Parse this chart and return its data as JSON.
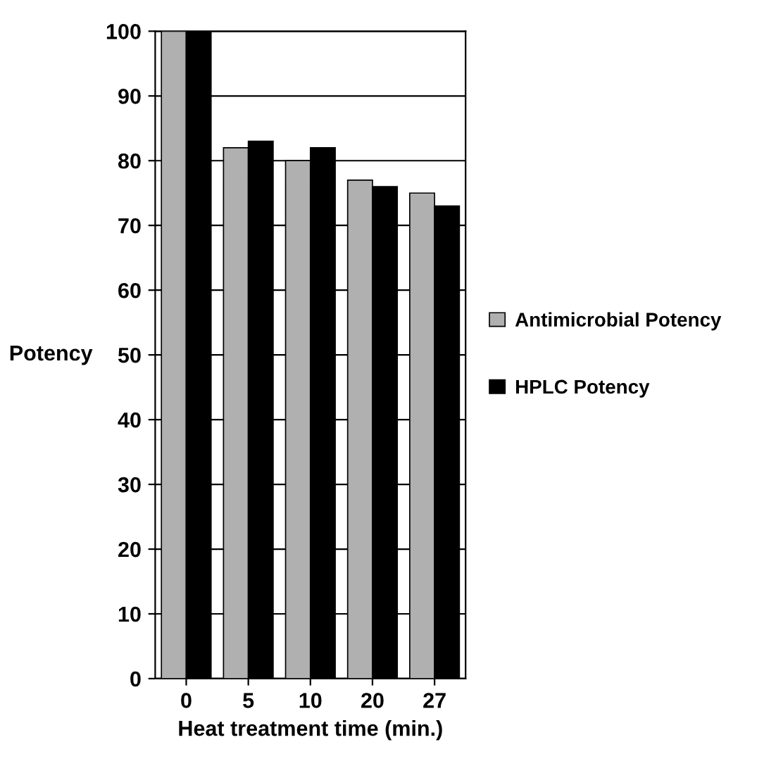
{
  "chart_data": {
    "type": "bar",
    "xlabel": "Heat treatment time (min.)",
    "ylabel": "Potency",
    "categories": [
      "0",
      "5",
      "10",
      "20",
      "27"
    ],
    "series": [
      {
        "name": "Antimicrobial Potency",
        "color": "#b0b0b0",
        "values": [
          100,
          82,
          80,
          77,
          75
        ]
      },
      {
        "name": "HPLC Potency",
        "color": "#000000",
        "values": [
          100,
          83,
          82,
          76,
          73
        ]
      }
    ],
    "ylim": [
      0,
      100
    ],
    "yticks": [
      0,
      10,
      20,
      30,
      40,
      50,
      60,
      70,
      80,
      90,
      100
    ],
    "grid": "y",
    "legend": "right"
  }
}
